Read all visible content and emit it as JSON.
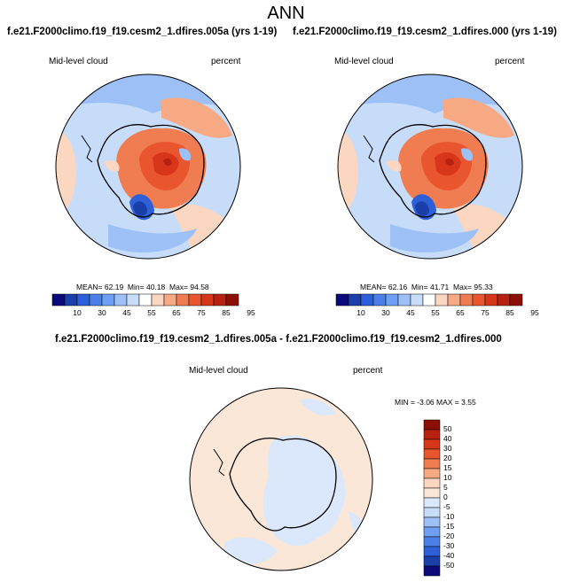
{
  "figure": {
    "season": "ANN"
  },
  "panels": {
    "top_left": {
      "case": "f.e21.F2000climo.f19_f19.cesm2_1.dfires.005a (yrs 1-19)",
      "variable": "Mid-level cloud",
      "units": "percent",
      "stats": {
        "mean_label": "MEAN=",
        "mean": "62.19",
        "min_label": "Min=",
        "min": "40.18",
        "max_label": "Max=",
        "max": "94.58"
      }
    },
    "top_right": {
      "case": "f.e21.F2000climo.f19_f19.cesm2_1.dfires.000 (yrs 1-19)",
      "variable": "Mid-level cloud",
      "units": "percent",
      "stats": {
        "mean_label": "MEAN=",
        "mean": "62.16",
        "min_label": "Min=",
        "min": "41.71",
        "max_label": "Max=",
        "max": "95.33"
      }
    },
    "bottom": {
      "case": "f.e21.F2000climo.f19_f19.cesm2_1.dfires.005a - f.e21.F2000climo.f19_f19.cesm2_1.dfires.000",
      "variable": "Mid-level cloud",
      "units": "percent",
      "stats": {
        "min_label": "MIN =",
        "min": "-3.06",
        "max_label": "MAX =",
        "max": "3.55"
      }
    }
  },
  "colorbar_top": {
    "labels": [
      "10",
      "30",
      "45",
      "55",
      "65",
      "75",
      "85",
      "95"
    ],
    "colors": [
      "#0a0a7a",
      "#1a3fa8",
      "#2c5fd8",
      "#4a7fe8",
      "#6f9ff2",
      "#9dc0f7",
      "#c7dcf9",
      "#ffffff",
      "#fbd6c0",
      "#f6a982",
      "#f07c51",
      "#e9552f",
      "#d8361a",
      "#b8200f",
      "#8c0f06"
    ]
  },
  "colorbar_bottom": {
    "labels": [
      "50",
      "40",
      "30",
      "20",
      "15",
      "10",
      "5",
      "0",
      "-5",
      "-10",
      "-15",
      "-20",
      "-30",
      "-40",
      "-50"
    ],
    "colors": [
      "#8c0f06",
      "#b8200f",
      "#d8361a",
      "#e9552f",
      "#f07c51",
      "#f6a982",
      "#fbd6c0",
      "#fbe7d8",
      "#dbe8fb",
      "#c7dcf9",
      "#9dc0f7",
      "#6f9ff2",
      "#4a7fe8",
      "#2c5fd8",
      "#1a3fa8",
      "#0a0a7a"
    ]
  }
}
